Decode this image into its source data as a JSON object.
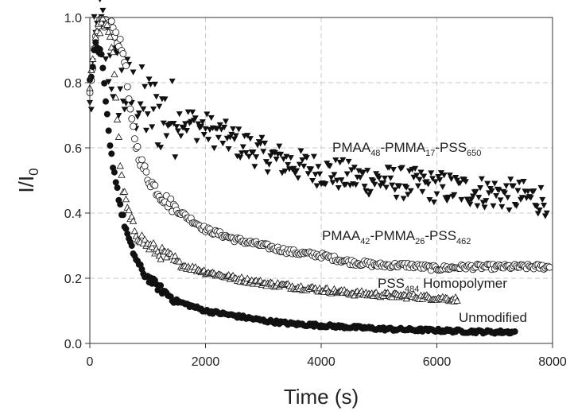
{
  "chart_data": {
    "type": "scatter",
    "xlabel": "Time (s)",
    "ylabel": "I/I",
    "ylabel_sub": "0",
    "xlim": [
      0,
      8000
    ],
    "ylim": [
      0,
      1.0
    ],
    "x_ticks": [
      "0",
      "2000",
      "4000",
      "6000",
      "8000"
    ],
    "y_ticks": [
      "0.0",
      "0.2",
      "0.4",
      "0.6",
      "0.8",
      "1.0"
    ],
    "grid": "dashed",
    "series": [
      {
        "name": "PMAA48-PMMA17-PSS650",
        "marker": "triangle-down-filled",
        "label_parts": [
          [
            "PMAA",
            ""
          ],
          [
            "48",
            "sub"
          ],
          [
            "-PMMA",
            ""
          ],
          [
            "17",
            "sub"
          ],
          [
            "-PSS",
            ""
          ],
          [
            "650",
            "sub"
          ]
        ],
        "points": [
          [
            0,
            0.7
          ],
          [
            60,
            0.86
          ],
          [
            150,
            0.97
          ],
          [
            250,
            0.93
          ],
          [
            400,
            0.83
          ],
          [
            550,
            0.78
          ],
          [
            700,
            0.76
          ],
          [
            900,
            0.73
          ],
          [
            1100,
            0.71
          ],
          [
            1300,
            0.7
          ],
          [
            1500,
            0.69
          ],
          [
            1700,
            0.68
          ],
          [
            2000,
            0.66
          ],
          [
            2500,
            0.62
          ],
          [
            3000,
            0.58
          ],
          [
            3500,
            0.55
          ],
          [
            4000,
            0.53
          ],
          [
            4500,
            0.51
          ],
          [
            5000,
            0.5
          ],
          [
            5500,
            0.49
          ],
          [
            6000,
            0.48
          ],
          [
            6500,
            0.47
          ],
          [
            7000,
            0.46
          ],
          [
            7500,
            0.45
          ],
          [
            7900,
            0.44
          ]
        ]
      },
      {
        "name": "PMAA42-PMMA26-PSS462",
        "marker": "circle-open",
        "label_parts": [
          [
            "PMAA",
            ""
          ],
          [
            "42",
            "sub"
          ],
          [
            "-PMMA",
            ""
          ],
          [
            "26",
            "sub"
          ],
          [
            "-PSS",
            ""
          ],
          [
            "462",
            "sub"
          ]
        ],
        "points": [
          [
            0,
            0.75
          ],
          [
            100,
            0.93
          ],
          [
            200,
            0.99
          ],
          [
            400,
            0.97
          ],
          [
            600,
            0.88
          ],
          [
            700,
            0.7
          ],
          [
            800,
            0.61
          ],
          [
            900,
            0.55
          ],
          [
            1000,
            0.51
          ],
          [
            1200,
            0.46
          ],
          [
            1500,
            0.41
          ],
          [
            2000,
            0.35
          ],
          [
            2500,
            0.32
          ],
          [
            3000,
            0.3
          ],
          [
            3500,
            0.28
          ],
          [
            4000,
            0.27
          ],
          [
            4500,
            0.25
          ],
          [
            5000,
            0.24
          ],
          [
            5500,
            0.24
          ],
          [
            6000,
            0.23
          ],
          [
            6500,
            0.235
          ],
          [
            7000,
            0.235
          ],
          [
            7500,
            0.235
          ],
          [
            7950,
            0.235
          ]
        ]
      },
      {
        "name": "PSS484 Homopolymer",
        "marker": "triangle-up-open",
        "label_parts": [
          [
            "PSS",
            ""
          ],
          [
            "484",
            "sub"
          ],
          [
            " Homopolymer",
            ""
          ]
        ],
        "points": [
          [
            0,
            0.8
          ],
          [
            100,
            0.95
          ],
          [
            250,
            0.99
          ],
          [
            400,
            0.9
          ],
          [
            500,
            0.62
          ],
          [
            550,
            0.5
          ],
          [
            600,
            0.45
          ],
          [
            700,
            0.38
          ],
          [
            800,
            0.34
          ],
          [
            1000,
            0.3
          ],
          [
            1300,
            0.27
          ],
          [
            1600,
            0.24
          ],
          [
            2000,
            0.22
          ],
          [
            2500,
            0.2
          ],
          [
            3000,
            0.185
          ],
          [
            3500,
            0.175
          ],
          [
            4000,
            0.165
          ],
          [
            4500,
            0.155
          ],
          [
            5000,
            0.15
          ],
          [
            5500,
            0.145
          ],
          [
            6000,
            0.14
          ],
          [
            6350,
            0.135
          ]
        ]
      },
      {
        "name": "Unmodified",
        "marker": "circle-filled",
        "label_parts": [
          [
            "Unmodified",
            ""
          ]
        ],
        "points": [
          [
            0,
            0.8
          ],
          [
            100,
            0.92
          ],
          [
            200,
            0.88
          ],
          [
            350,
            0.6
          ],
          [
            450,
            0.5
          ],
          [
            550,
            0.4
          ],
          [
            700,
            0.3
          ],
          [
            900,
            0.22
          ],
          [
            1200,
            0.17
          ],
          [
            1500,
            0.13
          ],
          [
            2000,
            0.1
          ],
          [
            2500,
            0.085
          ],
          [
            3000,
            0.07
          ],
          [
            3500,
            0.06
          ],
          [
            4000,
            0.055
          ],
          [
            4500,
            0.05
          ],
          [
            5000,
            0.045
          ],
          [
            5500,
            0.042
          ],
          [
            6000,
            0.04
          ],
          [
            6500,
            0.037
          ],
          [
            7000,
            0.035
          ],
          [
            7350,
            0.035
          ]
        ]
      }
    ]
  }
}
